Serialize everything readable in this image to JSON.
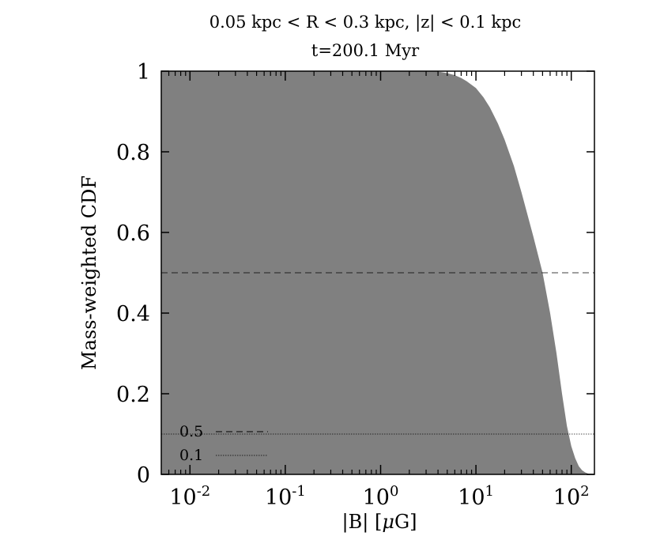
{
  "chart_data": {
    "type": "area",
    "title": "0.05 kpc < R < 0.3 kpc, |z| < 0.1 kpc",
    "subtitle": "t=200.1 Myr",
    "xlabel_parts": {
      "prefix": "|B| [",
      "mu": "μ",
      "suffix": "G]"
    },
    "ylabel": "Mass-weighted CDF",
    "xscale": "log",
    "xlim": [
      0.005,
      175
    ],
    "ylim": [
      0,
      1
    ],
    "x_ticks": [
      {
        "value": 0.01,
        "base": "10",
        "exp": "-2"
      },
      {
        "value": 0.1,
        "base": "10",
        "exp": "-1"
      },
      {
        "value": 1,
        "base": "10",
        "exp": "0"
      },
      {
        "value": 10,
        "base": "10",
        "exp": "1"
      },
      {
        "value": 100,
        "base": "10",
        "exp": "2"
      }
    ],
    "y_ticks": [
      {
        "value": 0,
        "label": "0"
      },
      {
        "value": 0.2,
        "label": "0.2"
      },
      {
        "value": 0.4,
        "label": "0.4"
      },
      {
        "value": 0.6,
        "label": "0.6"
      },
      {
        "value": 0.8,
        "label": "0.8"
      },
      {
        "value": 1,
        "label": "1"
      }
    ],
    "series": [
      {
        "fill": "#808080",
        "x": [
          0.005,
          1,
          2,
          3.2,
          4,
          5,
          6,
          7,
          8,
          10,
          12,
          14,
          17,
          20,
          25,
          30,
          40,
          50,
          60,
          70,
          80,
          90,
          100,
          110,
          120,
          130,
          140,
          150,
          160,
          175
        ],
        "y": [
          1.0,
          1.0,
          1.0,
          1.0,
          0.999,
          0.995,
          0.99,
          0.983,
          0.975,
          0.958,
          0.935,
          0.91,
          0.87,
          0.83,
          0.765,
          0.7,
          0.59,
          0.5,
          0.4,
          0.3,
          0.2,
          0.12,
          0.07,
          0.04,
          0.02,
          0.01,
          0.005,
          0.002,
          0.0,
          0.0
        ]
      }
    ],
    "reference_lines": [
      {
        "y": 0.5,
        "dash": "dashed",
        "label": "0.5"
      },
      {
        "y": 0.1,
        "dash": "dotted",
        "label": "0.1"
      }
    ],
    "legend_position": "bottom-left",
    "grid": false
  }
}
